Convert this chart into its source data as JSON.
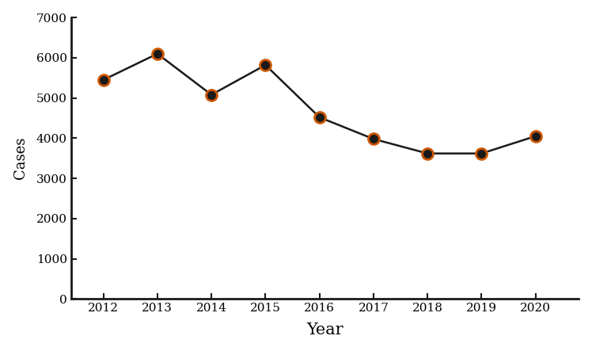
{
  "years": [
    2012,
    2013,
    2014,
    2015,
    2016,
    2017,
    2018,
    2019,
    2020
  ],
  "cases": [
    5450,
    6100,
    5080,
    5820,
    4520,
    3980,
    3620,
    3620,
    4050
  ],
  "line_color": "#1a1a1a",
  "marker_face_color": "#1a1a1a",
  "marker_edge_color": "#cc5500",
  "marker_size": 10,
  "marker_edge_width": 2.0,
  "line_width": 1.8,
  "xlabel": "Year",
  "ylabel": "Cases",
  "ylim": [
    0,
    7000
  ],
  "yticks": [
    0,
    1000,
    2000,
    3000,
    4000,
    5000,
    6000,
    7000
  ],
  "xlabel_fontsize": 15,
  "ylabel_fontsize": 13,
  "tick_fontsize": 11,
  "background_color": "#ffffff"
}
